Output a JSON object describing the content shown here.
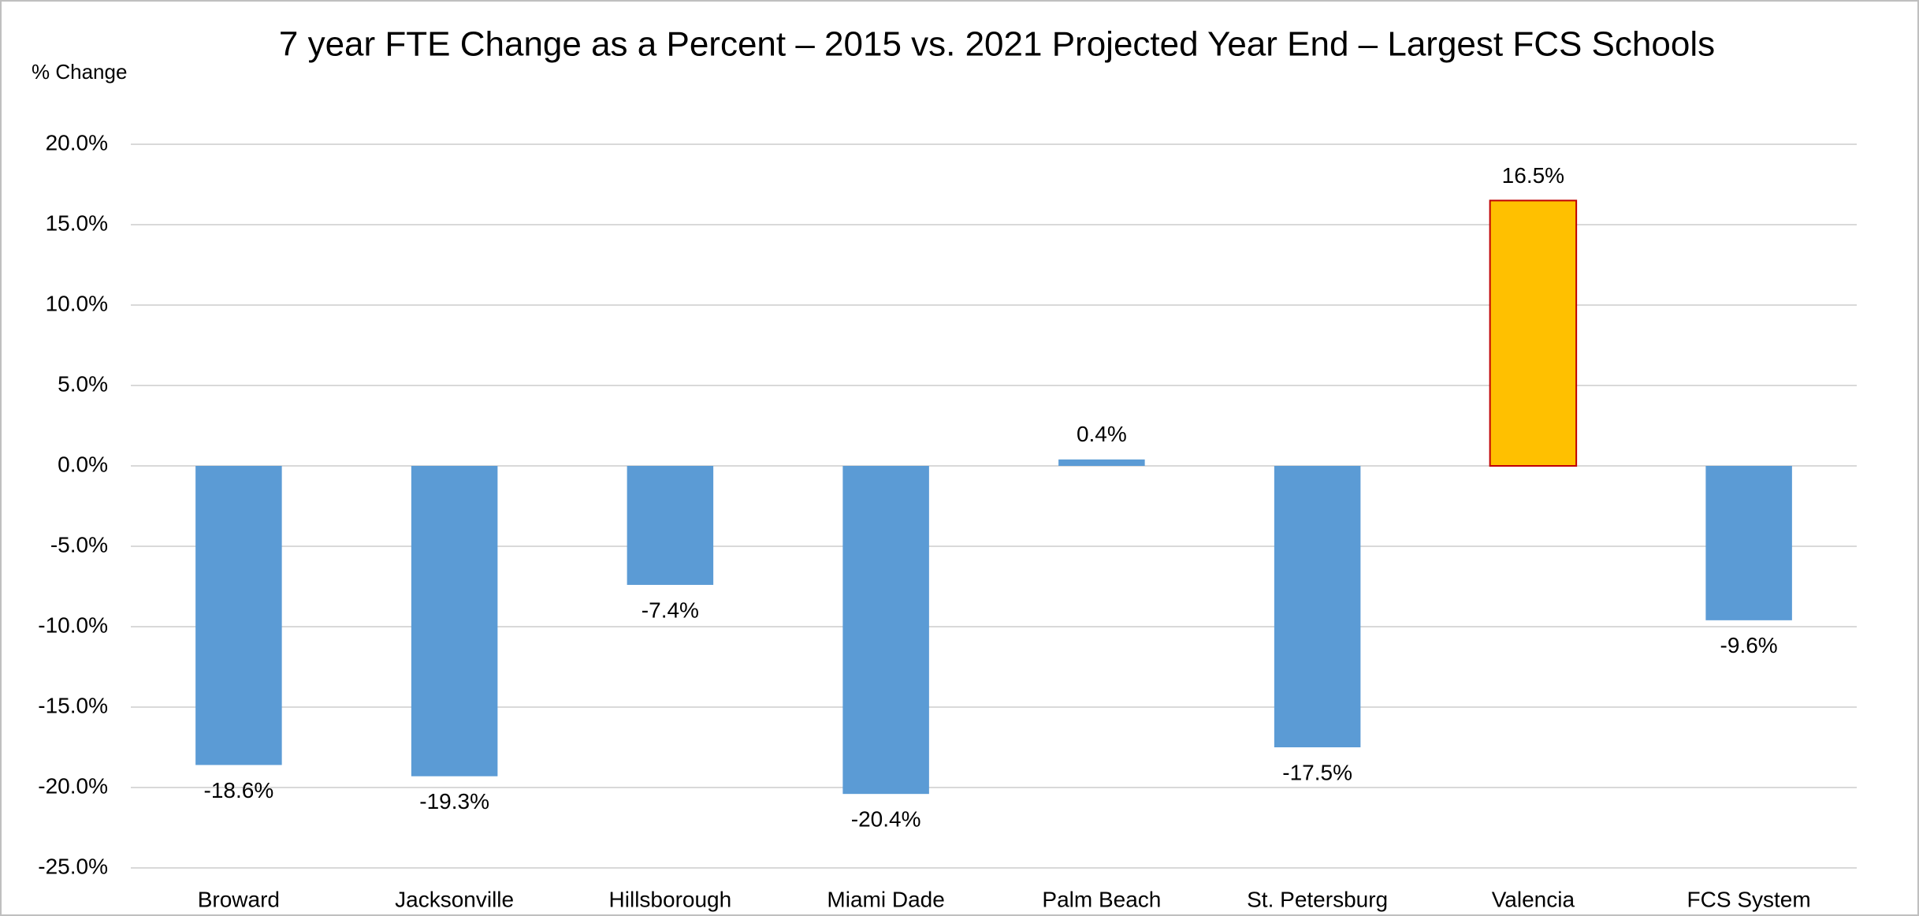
{
  "chart_data": {
    "type": "bar",
    "title": "7 year FTE Change as a Percent – 2015 vs. 2021 Projected Year End – Largest FCS Schools",
    "y_label": "% Change",
    "categories": [
      "Broward",
      "Jacksonville",
      "Hillsborough",
      "Miami Dade",
      "Palm Beach",
      "St. Petersburg",
      "Valencia",
      "FCS System"
    ],
    "values": [
      -18.6,
      -19.3,
      -7.4,
      -20.4,
      0.4,
      -17.5,
      16.5,
      -9.6
    ],
    "value_labels": [
      "-18.6%",
      "-19.3%",
      "-7.4%",
      "-20.4%",
      "0.4%",
      "-17.5%",
      "16.5%",
      "-9.6%"
    ],
    "colors": [
      "#5b9bd5",
      "#5b9bd5",
      "#5b9bd5",
      "#5b9bd5",
      "#5b9bd5",
      "#5b9bd5",
      "#ffc000",
      "#5b9bd5"
    ],
    "ylim": [
      -25,
      20
    ],
    "yticks": [
      {
        "value": -25,
        "label": "-25.0%"
      },
      {
        "value": -20,
        "label": "-20.0%"
      },
      {
        "value": -15,
        "label": "-15.0%"
      },
      {
        "value": -10,
        "label": "-10.0%"
      },
      {
        "value": -5,
        "label": "-5.0%"
      },
      {
        "value": 0,
        "label": "0.0%"
      },
      {
        "value": 5,
        "label": "5.0%"
      },
      {
        "value": 10,
        "label": "10.0%"
      },
      {
        "value": 15,
        "label": "15.0%"
      },
      {
        "value": 20,
        "label": "20.0%"
      }
    ],
    "grid": true
  }
}
